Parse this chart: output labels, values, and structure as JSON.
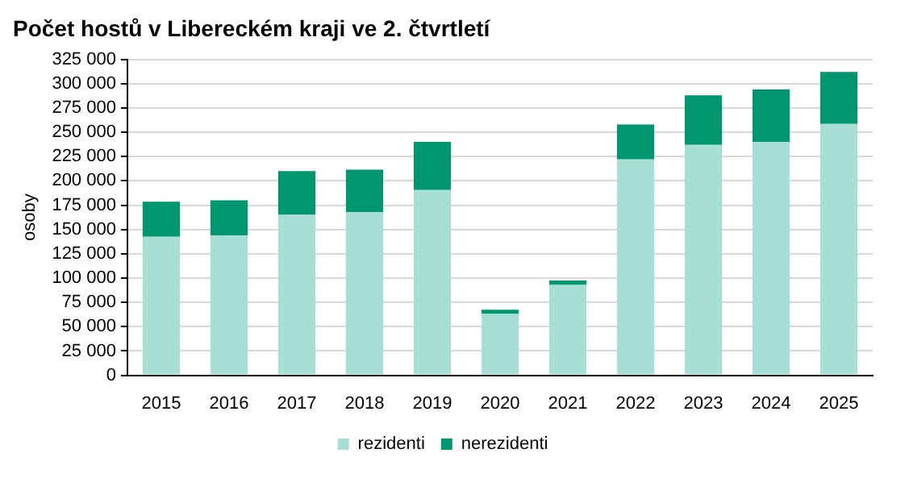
{
  "chart_data": {
    "type": "bar",
    "title": "Počet hostů v Libereckém kraji ve 2. čtvrtletí",
    "ylabel": "osoby",
    "categories": [
      "2015",
      "2016",
      "2017",
      "2018",
      "2019",
      "2020",
      "2021",
      "2022",
      "2023",
      "2024",
      "2025"
    ],
    "stacked": true,
    "series": [
      {
        "name": "rezidenti",
        "color": "#a8dfd5",
        "values": [
          142500,
          144000,
          165000,
          168000,
          190500,
          63000,
          93000,
          222000,
          237000,
          240000,
          258500
        ]
      },
      {
        "name": "nerezidenti",
        "color": "#009670",
        "values": [
          36000,
          36000,
          45000,
          43500,
          49500,
          4500,
          4500,
          36000,
          51000,
          54000,
          53500
        ]
      }
    ],
    "ylim": [
      0,
      325000
    ],
    "yticks": [
      {
        "value": 0,
        "label": "0"
      },
      {
        "value": 25000,
        "label": "25 000"
      },
      {
        "value": 50000,
        "label": "50 000"
      },
      {
        "value": 75000,
        "label": "75 000"
      },
      {
        "value": 100000,
        "label": "100 000"
      },
      {
        "value": 125000,
        "label": "125 000"
      },
      {
        "value": 150000,
        "label": "150 000"
      },
      {
        "value": 175000,
        "label": "175 000"
      },
      {
        "value": 200000,
        "label": "200 000"
      },
      {
        "value": 225000,
        "label": "225 000"
      },
      {
        "value": 250000,
        "label": "250 000"
      },
      {
        "value": 275000,
        "label": "275 000"
      },
      {
        "value": 300000,
        "label": "300 000"
      },
      {
        "value": 325000,
        "label": "325 000"
      }
    ],
    "grid": "y",
    "legend": "bottom"
  }
}
